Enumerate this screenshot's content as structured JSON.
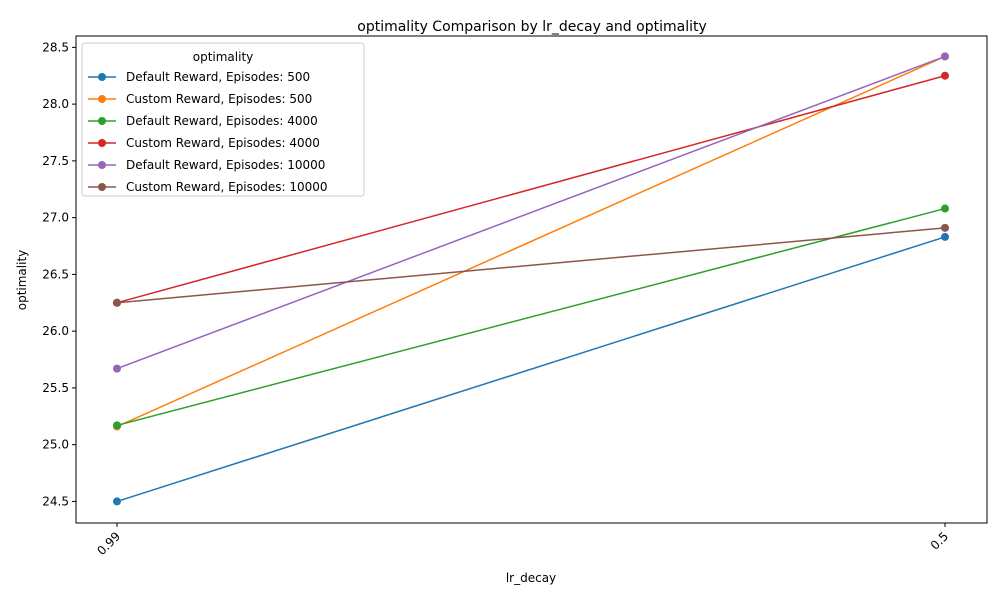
{
  "chart_data": {
    "type": "line",
    "title": "optimality Comparison by lr_decay and optimality",
    "xlabel": "lr_decay",
    "ylabel": "optimality",
    "categories": [
      "0.99",
      "0.5"
    ],
    "ylim": [
      24.31,
      28.6
    ],
    "yticks": [
      24.5,
      25.0,
      25.5,
      26.0,
      26.5,
      27.0,
      27.5,
      28.0,
      28.5
    ],
    "ytick_labels": [
      "24.5",
      "25.0",
      "25.5",
      "26.0",
      "26.5",
      "27.0",
      "27.5",
      "28.0",
      "28.5"
    ],
    "grid": false,
    "legend": {
      "title": "optimality",
      "placement": "top-left"
    },
    "series": [
      {
        "name": "Default Reward, Episodes: 500",
        "color": "#1f77b4",
        "values": [
          24.5,
          26.83
        ]
      },
      {
        "name": "Custom Reward, Episodes: 500",
        "color": "#ff7f0e",
        "values": [
          25.16,
          28.42
        ]
      },
      {
        "name": "Default Reward, Episodes: 4000",
        "color": "#2ca02c",
        "values": [
          25.17,
          27.08
        ]
      },
      {
        "name": "Custom Reward, Episodes: 4000",
        "color": "#d62728",
        "values": [
          26.25,
          28.25
        ]
      },
      {
        "name": "Default Reward, Episodes: 10000",
        "color": "#9467bd",
        "values": [
          25.67,
          28.42
        ]
      },
      {
        "name": "Custom Reward, Episodes: 10000",
        "color": "#8c564b",
        "values": [
          26.25,
          26.91
        ]
      }
    ]
  }
}
